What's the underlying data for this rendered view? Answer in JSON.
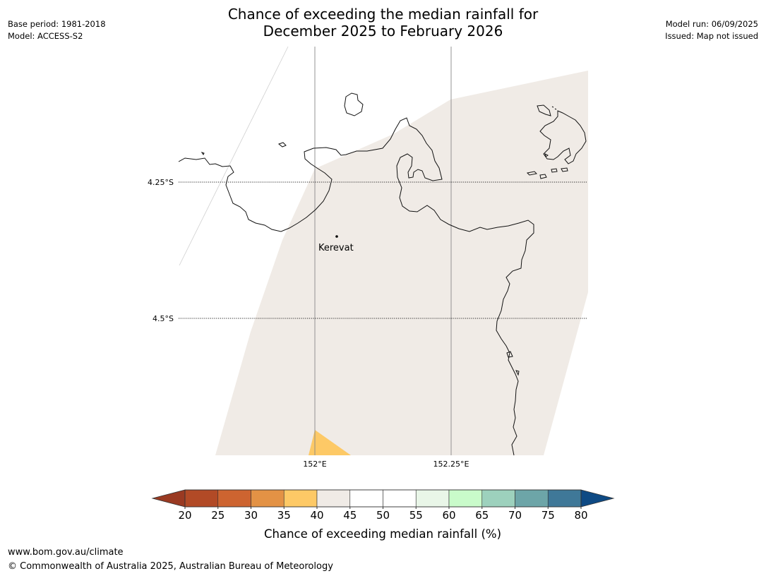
{
  "header": {
    "title_line1": "Chance of exceeding the median rainfall for",
    "title_line2": "December 2025 to February 2026",
    "base_period": "Base period: 1981-2018",
    "model": "Model: ACCESS-S2",
    "model_run": "Model run: 06/09/2025",
    "issued": "Issued: Map not issued"
  },
  "map": {
    "latitude_labels": [
      "4.25°S",
      "4.5°S"
    ],
    "longitude_labels": [
      "152°E",
      "152.25°E"
    ],
    "place": {
      "name": "Kerevat"
    },
    "colors": {
      "land_fill": "#f0ebe6",
      "orange_patch": "#fdc966",
      "coastline": "#111111",
      "gridline": "#888888"
    }
  },
  "colorbar": {
    "label": "Chance of exceeding median rainfall (%)",
    "ticks": [
      "20",
      "25",
      "30",
      "35",
      "40",
      "45",
      "50",
      "55",
      "60",
      "65",
      "70",
      "75",
      "80"
    ],
    "low_extend_color": "#9a3a22",
    "high_extend_color": "#0e4a84",
    "bins": [
      {
        "from": 20,
        "to": 25,
        "color": "#b24a26"
      },
      {
        "from": 25,
        "to": 30,
        "color": "#cd6430"
      },
      {
        "from": 30,
        "to": 35,
        "color": "#e39245"
      },
      {
        "from": 35,
        "to": 40,
        "color": "#fdc966"
      },
      {
        "from": 40,
        "to": 45,
        "color": "#f0ebe6"
      },
      {
        "from": 45,
        "to": 50,
        "color": "#ffffff"
      },
      {
        "from": 50,
        "to": 55,
        "color": "#ffffff"
      },
      {
        "from": 55,
        "to": 60,
        "color": "#e9f6e8"
      },
      {
        "from": 60,
        "to": 65,
        "color": "#c9fbca"
      },
      {
        "from": 65,
        "to": 70,
        "color": "#9dd1bd"
      },
      {
        "from": 70,
        "to": 75,
        "color": "#6da5a8"
      },
      {
        "from": 75,
        "to": 80,
        "color": "#3f7898"
      }
    ]
  },
  "footer": {
    "url": "www.bom.gov.au/climate",
    "copyright": "© Commonwealth of Australia 2025, Australian Bureau of Meteorology"
  }
}
